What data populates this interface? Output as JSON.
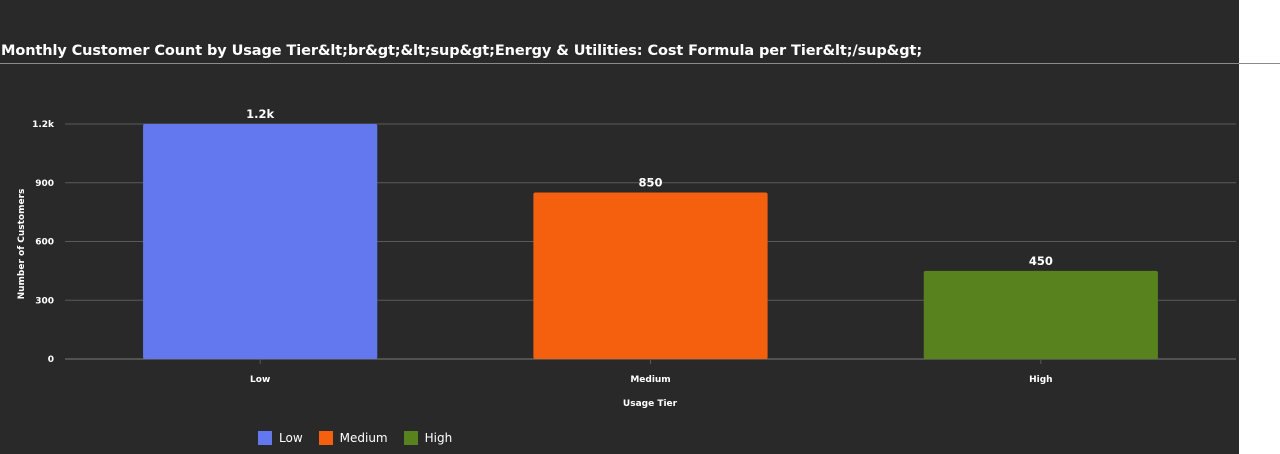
{
  "chart_data": {
    "type": "bar",
    "title": "Monthly Customer Count by Usage Tier&lt;br&gt;&lt;sup&gt;Energy & Utilities: Cost Formula per Tier&lt;/sup&gt;",
    "xlabel": "Usage Tier",
    "ylabel": "Number of Customers",
    "categories": [
      "Low",
      "Medium",
      "High"
    ],
    "values": [
      1200,
      850,
      450
    ],
    "data_labels": [
      "1.2k",
      "850",
      "450"
    ],
    "colors": [
      "#6378ee",
      "#f5600e",
      "#57821e"
    ],
    "ylim": [
      0,
      1200
    ],
    "yticks": [
      0,
      300,
      600,
      900,
      1200
    ],
    "ytick_labels": [
      "0",
      "300",
      "600",
      "900",
      "1.2k"
    ],
    "grid": true,
    "legend": {
      "placement": "bottom-left",
      "items": [
        {
          "label": "Low",
          "color": "#6378ee"
        },
        {
          "label": "Medium",
          "color": "#f5600e"
        },
        {
          "label": "High",
          "color": "#57821e"
        }
      ]
    },
    "background": "#292929",
    "text_color": "#ffffff",
    "grid_color": "#5a5a5a"
  }
}
